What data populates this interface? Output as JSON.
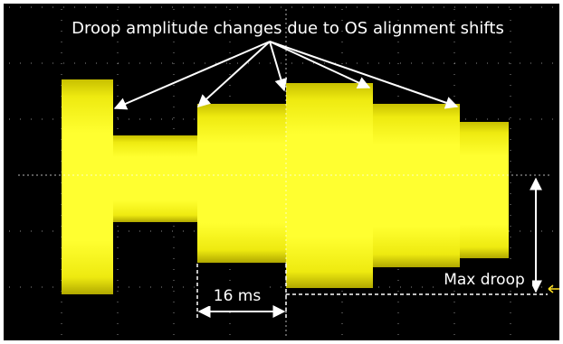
{
  "annotations": {
    "title": "Droop amplitude changes due to OS alignment shifts",
    "time_label": "16 ms",
    "droop_label": "Max droop"
  }
}
